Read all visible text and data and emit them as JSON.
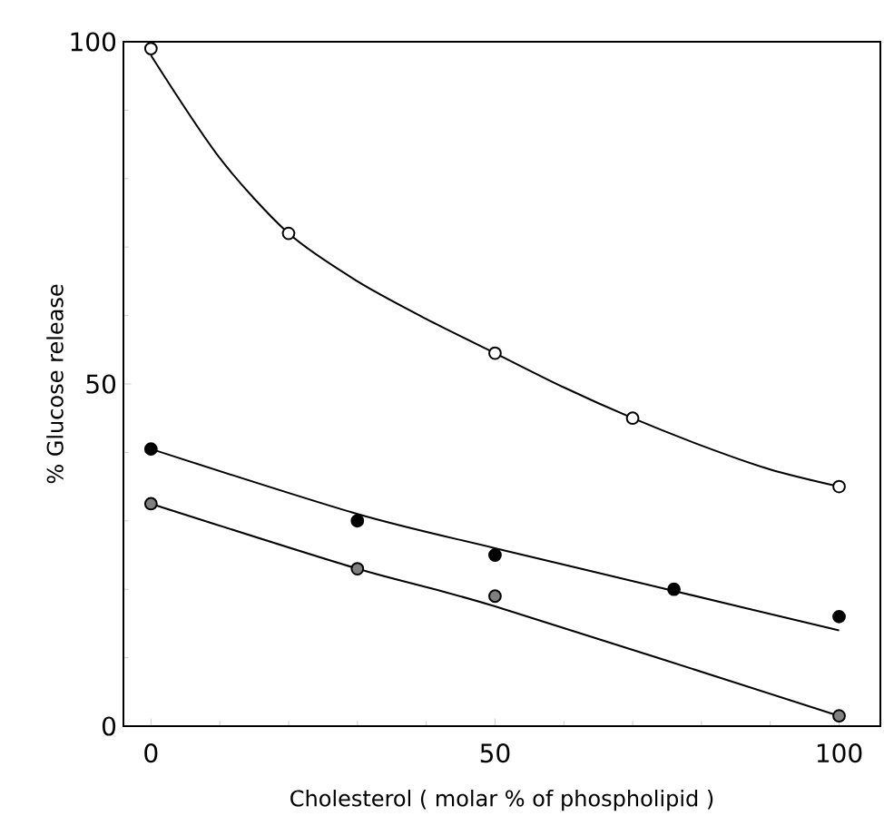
{
  "chart_data": {
    "type": "line",
    "xlabel": "Cholesterol   ( molar % of phospholipid )",
    "ylabel": "% Glucose release",
    "xlim": [
      -4,
      106
    ],
    "ylim": [
      0,
      100
    ],
    "xticks": [
      0,
      50,
      100
    ],
    "yticks": [
      0,
      50,
      100
    ],
    "grid": false,
    "series": [
      {
        "type": "scatter",
        "marker": "circle",
        "color": "#ffffff",
        "x": [
          0,
          20,
          50,
          70,
          100
        ],
        "values": [
          99,
          72,
          54.5,
          45,
          35
        ]
      },
      {
        "type": "scatter",
        "marker": "circle",
        "color": "#000000",
        "x": [
          0,
          30,
          50,
          76,
          100
        ],
        "values": [
          40.5,
          30,
          25,
          20,
          16
        ]
      },
      {
        "type": "scatter",
        "marker": "circle",
        "color": "#808080",
        "x": [
          0,
          30,
          50,
          100
        ],
        "values": [
          32.5,
          23,
          19,
          1.5
        ]
      },
      {
        "marker": "none",
        "color": "#000000",
        "x": [
          0,
          10,
          20,
          30,
          40,
          50,
          60,
          70,
          80,
          90,
          100
        ],
        "values": [
          98,
          83,
          72,
          65,
          59.5,
          54.5,
          49.5,
          45,
          41,
          37.5,
          35
        ]
      },
      {
        "marker": "none",
        "color": "#000000",
        "x": [
          0,
          30,
          50,
          75,
          100
        ],
        "values": [
          40.5,
          31,
          26,
          20,
          14
        ]
      },
      {
        "marker": "none",
        "color": "#000000",
        "x": [
          0,
          30,
          50,
          100
        ],
        "values": [
          32.5,
          23,
          17.5,
          1.5
        ]
      }
    ]
  }
}
